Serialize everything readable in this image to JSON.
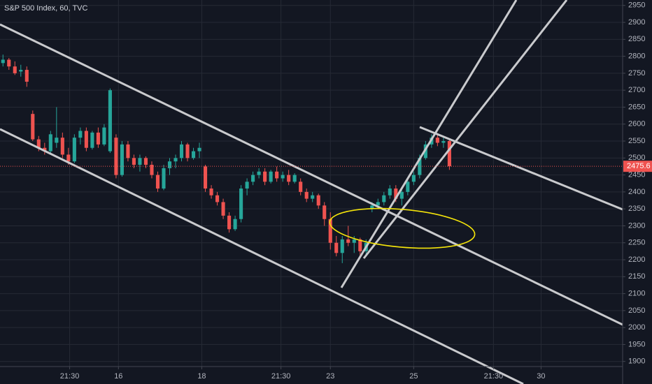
{
  "chart_data": {
    "type": "candlestick",
    "title": "S&P 500 Index, 60, TVC",
    "up_color": "#26a69a",
    "down_color": "#ef5350",
    "xlim": [
      -0.5,
      104.1
    ],
    "xticks": [
      {
        "value": 11.2,
        "label": "21:30"
      },
      {
        "value": 19.4,
        "label": "16"
      },
      {
        "value": 33.4,
        "label": "18"
      },
      {
        "value": 46.7,
        "label": "21:30"
      },
      {
        "value": 55,
        "label": "23"
      },
      {
        "value": 69,
        "label": "25"
      },
      {
        "value": 82.4,
        "label": "21:30"
      },
      {
        "value": 90.4,
        "label": "30"
      }
    ],
    "ylim": [
      1885,
      2966
    ],
    "yticks": [
      1900,
      1950,
      2000,
      2050,
      2100,
      2150,
      2200,
      2250,
      2300,
      2350,
      2400,
      2450,
      2500,
      2550,
      2600,
      2650,
      2700,
      2750,
      2800,
      2850,
      2900,
      2950
    ],
    "grid": true,
    "last_price": 2475.6,
    "open": [
      2780,
      2790,
      2770,
      2755,
      2760,
      2630,
      2555,
      2530,
      2520,
      2545,
      2560,
      2510,
      2490,
      2560,
      2580,
      2530,
      2575,
      2540,
      2520,
      2560,
      2450,
      2540,
      2500,
      2480,
      2500,
      2480,
      2450,
      2410,
      2470,
      2490,
      2500,
      2540,
      2500,
      2520,
      2475,
      2410,
      2390,
      2370,
      2330,
      2290,
      2320,
      2410,
      2430,
      2450,
      2460,
      2430,
      2460,
      2440,
      2450,
      2430,
      2430,
      2400,
      2380,
      2390,
      2360,
      2320,
      2250,
      2220,
      2260,
      2250,
      2260,
      2225,
      2350,
      2360,
      2370,
      2390,
      2410,
      2380,
      2400,
      2430,
      2450,
      2500,
      2540,
      2560,
      2545,
      2550
    ],
    "high": [
      2805,
      2795,
      2785,
      2775,
      2770,
      2640,
      2565,
      2545,
      2580,
      2650,
      2575,
      2530,
      2570,
      2590,
      2590,
      2580,
      2590,
      2600,
      2705,
      2570,
      2550,
      2550,
      2510,
      2510,
      2505,
      2490,
      2460,
      2480,
      2500,
      2510,
      2550,
      2545,
      2530,
      2545,
      2480,
      2420,
      2400,
      2380,
      2340,
      2330,
      2420,
      2440,
      2460,
      2470,
      2470,
      2465,
      2475,
      2460,
      2465,
      2455,
      2440,
      2410,
      2400,
      2395,
      2370,
      2340,
      2270,
      2270,
      2300,
      2270,
      2265,
      2260,
      2370,
      2380,
      2400,
      2420,
      2420,
      2410,
      2440,
      2460,
      2510,
      2550,
      2570,
      2570,
      2560,
      2555
    ],
    "low": [
      2770,
      2760,
      2745,
      2740,
      2710,
      2550,
      2520,
      2510,
      2515,
      2530,
      2500,
      2480,
      2485,
      2540,
      2520,
      2525,
      2530,
      2535,
      2515,
      2440,
      2445,
      2490,
      2470,
      2460,
      2470,
      2440,
      2400,
      2405,
      2450,
      2470,
      2490,
      2490,
      2495,
      2500,
      2400,
      2380,
      2360,
      2320,
      2280,
      2285,
      2310,
      2390,
      2420,
      2440,
      2420,
      2425,
      2430,
      2430,
      2420,
      2425,
      2390,
      2370,
      2370,
      2350,
      2300,
      2230,
      2210,
      2190,
      2240,
      2220,
      2210,
      2215,
      2340,
      2350,
      2360,
      2380,
      2370,
      2360,
      2390,
      2420,
      2440,
      2495,
      2530,
      2535,
      2530,
      2465
    ],
    "close": [
      2790,
      2770,
      2750,
      2760,
      2725,
      2555,
      2530,
      2520,
      2570,
      2560,
      2510,
      2490,
      2560,
      2580,
      2530,
      2575,
      2540,
      2590,
      2700,
      2450,
      2540,
      2500,
      2480,
      2500,
      2480,
      2450,
      2410,
      2470,
      2490,
      2500,
      2540,
      2500,
      2520,
      2530,
      2410,
      2390,
      2370,
      2330,
      2290,
      2320,
      2410,
      2430,
      2450,
      2460,
      2430,
      2460,
      2440,
      2450,
      2430,
      2450,
      2400,
      2380,
      2390,
      2360,
      2320,
      2250,
      2220,
      2260,
      2250,
      2260,
      2225,
      2250,
      2360,
      2370,
      2390,
      2410,
      2380,
      2400,
      2430,
      2450,
      2500,
      2540,
      2560,
      2545,
      2550,
      2475.6
    ]
  }
}
